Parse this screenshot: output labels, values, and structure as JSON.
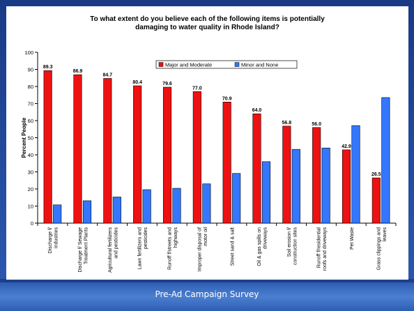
{
  "footer": {
    "caption": "Pre-Ad Campaign Survey"
  },
  "chart_data": {
    "type": "bar",
    "title_line1": "To what extent do you believe each of the following items is potentially",
    "title_line2": "damaging to water quality in Rhode Island?",
    "ylabel": "Percent People",
    "xlabel": "",
    "ylim": [
      0,
      100
    ],
    "yticks": [
      0,
      10,
      20,
      30,
      40,
      50,
      60,
      70,
      80,
      90,
      100
    ],
    "grid": false,
    "legend_position": "top-center",
    "categories": [
      [
        "Discharge f/",
        "industries"
      ],
      [
        "Discharge f/ Sewage",
        "Treatment Plants"
      ],
      [
        "Agricultural fertilizers",
        "and pesticides"
      ],
      [
        "Lawn fertilizers and",
        "pesticides"
      ],
      [
        "Runoff f/streets and",
        "highways"
      ],
      [
        "Improper disposal of",
        "motor oil"
      ],
      [
        "Street sand & salt"
      ],
      [
        "Oil & gas spills on",
        "driveways"
      ],
      [
        "Soil erosion f/",
        "construction sites"
      ],
      [
        "Runoff f/residential",
        "roofs and driveways"
      ],
      [
        "Pet Waste"
      ],
      [
        "Grass clippings and",
        "leaves"
      ]
    ],
    "series": [
      {
        "name": "Major and Moderate",
        "color": "#ee1111",
        "values": [
          89.3,
          86.9,
          84.7,
          80.4,
          79.6,
          77.0,
          70.9,
          64.0,
          56.8,
          56.0,
          42.9,
          26.5
        ],
        "data_labels": [
          "89.3",
          "86.9",
          "84.7",
          "80.4",
          "79.6",
          "77.0",
          "70.9",
          "64.0",
          "56.8",
          "56.0",
          "42.9",
          "26.5"
        ]
      },
      {
        "name": "Minor and None",
        "color": "#3377ff",
        "values": [
          10.7,
          13.1,
          15.3,
          19.6,
          20.4,
          23.0,
          29.1,
          36.0,
          43.2,
          44.0,
          57.1,
          73.5
        ]
      }
    ]
  }
}
